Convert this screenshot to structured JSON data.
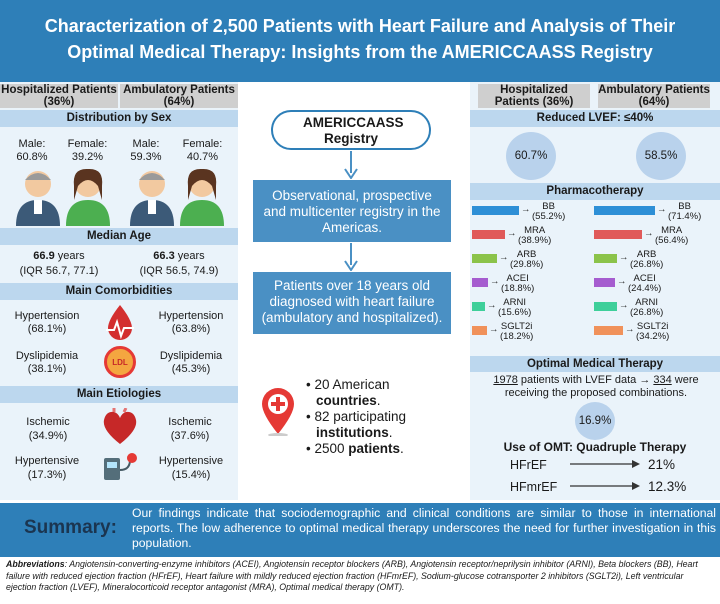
{
  "title": {
    "line1": "Characterization of 2,500 Patients with Heart Failure and Analysis of Their",
    "line2": "Optimal Medical Therapy: Insights from the AMERICCAASS Registry"
  },
  "left": {
    "col_hosp": "Hospitalized Patients (36%)",
    "col_amb": "Ambulatory Patients (64%)",
    "sex": {
      "heading": "Distribution by Sex",
      "hosp_male": "Male: 60.8%",
      "hosp_female": "Female: 39.2%",
      "amb_male": "Male: 59.3%",
      "amb_female": "Female: 40.7%"
    },
    "age": {
      "heading": "Median Age",
      "hosp_value": "66.9",
      "amb_value": "66.3",
      "unit": " years",
      "hosp_iqr": "(IQR 56.7, 77.1)",
      "amb_iqr": "(IQR 56.5, 74.9)"
    },
    "comorbidities": {
      "heading": "Main Comorbidities",
      "hosp_htn_label": "Hypertension",
      "hosp_htn_value": "(68.1%)",
      "amb_htn_label": "Hypertension",
      "amb_htn_value": "(63.8%)",
      "hosp_dys_label": "Dyslipidemia",
      "hosp_dys_value": "(38.1%)",
      "amb_dys_label": "Dyslipidemia",
      "amb_dys_value": "(45.3%)",
      "ldl_badge": "LDL"
    },
    "etiologies": {
      "heading": "Main Etiologies",
      "hosp_isch_label": "Ischemic",
      "hosp_isch_value": "(34.9%)",
      "amb_isch_label": "Ischemic",
      "amb_isch_value": "(37.6%)",
      "hosp_hyp_label": "Hypertensive",
      "hosp_hyp_value": "(17.3%)",
      "amb_hyp_label": "Hypertensive",
      "amb_hyp_value": "(15.4%)"
    }
  },
  "center": {
    "registry": "AMERICCAASS Registry",
    "box1": "Observational, prospective and multicenter registry in the Americas.",
    "box2": "Patients over 18 years old diagnosed with heart failure (ambulatory and hospitalized).",
    "bullets": [
      {
        "pre": "20 American ",
        "bold": "countries",
        "post": "."
      },
      {
        "pre": "82 participating ",
        "bold": "institutions",
        "post": "."
      },
      {
        "pre": "2500 ",
        "bold": "patients",
        "post": "."
      }
    ]
  },
  "right": {
    "col_hosp": "Hospitalized Patients (36%)",
    "col_amb": "Ambulatory Patients (64%)",
    "lvef_heading": "Reduced LVEF: ≤40%",
    "lvef_hosp": "60.7%",
    "lvef_amb": "58.5%",
    "pharma_heading": "Pharmacotherapy",
    "omt_heading": "Optimal Medical Therapy",
    "omt_text_n1": "1978",
    "omt_text_mid": " patients with LVEF data → ",
    "omt_text_n2": "334",
    "omt_text_end": " were receiving the proposed combinations.",
    "omt_percent": "16.9%",
    "quad_heading": "Use of OMT: Quadruple Therapy",
    "quad": [
      {
        "label": "HFrEF",
        "value": "21%"
      },
      {
        "label": "HFmrEF",
        "value": "12.3%"
      }
    ]
  },
  "chart_data": {
    "type": "bar",
    "categories": [
      "BB",
      "MRA",
      "ARB",
      "ACEI",
      "ARNI",
      "SGLT2i"
    ],
    "series": [
      {
        "name": "Hospitalized Patients (36%)",
        "values": [
          55.2,
          38.9,
          29.8,
          18.8,
          15.6,
          18.2
        ]
      },
      {
        "name": "Ambulatory Patients (64%)",
        "values": [
          71.4,
          56.4,
          26.8,
          24.4,
          26.8,
          34.2
        ]
      }
    ],
    "value_labels_hosp": [
      "(55.2%)",
      "(38.9%)",
      "(29.8%)",
      "(18.8%)",
      "(15.6%)",
      "(18.2%)"
    ],
    "value_labels_amb": [
      "(71.4%)",
      "(56.4%)",
      "(26.8%)",
      "(24.4%)",
      "(26.8%)",
      "(34.2%)"
    ],
    "colors": [
      "#2e8fd6",
      "#e05a5a",
      "#8bc34a",
      "#a55ccf",
      "#3ecf9a",
      "#f0915a"
    ]
  },
  "summary": {
    "label": "Summary:",
    "text": "Our findings indicate that sociodemographic and clinical conditions are similar to those in international reports. The low adherence to optimal medical therapy underscores the need for further investigation in this population."
  },
  "abbreviations": {
    "label": "Abbreviations",
    "text": ": Angiotensin-converting-enzyme inhibitors (ACEI), Angiotensin receptor blockers (ARB), Angiotensin receptor/neprilysin inhibitor (ARNI), Beta blockers (BB), Heart failure with reduced ejection fraction (HFrEF), Heart failure with mildly reduced ejection fraction (HFmrEF), Sodium-glucose cotransporter 2 inhibitors (SGLT2i), Left ventricular ejection fraction (LVEF), Mineralocorticoid receptor antagonist (MRA), Optimal medical therapy (OMT)."
  }
}
